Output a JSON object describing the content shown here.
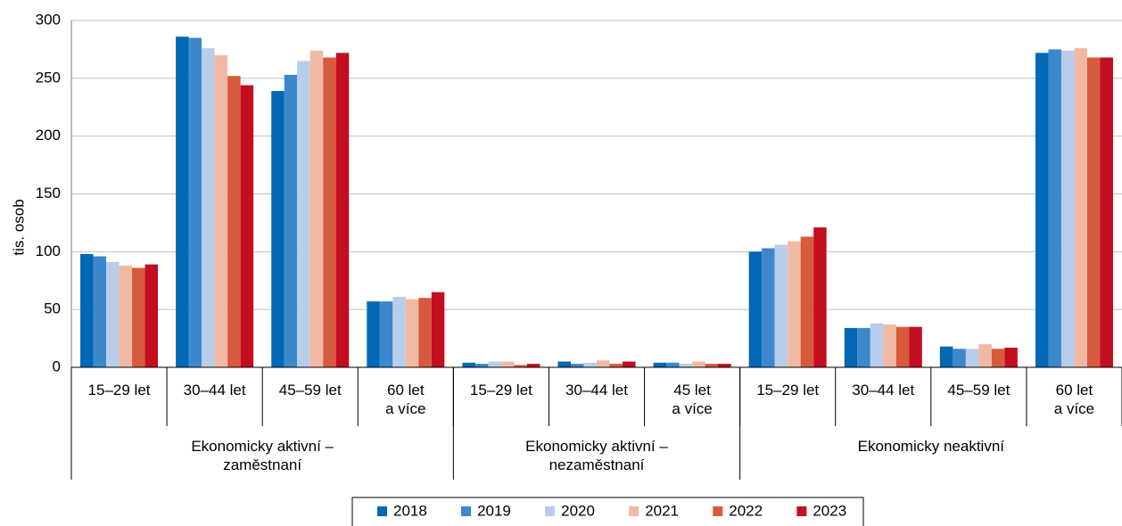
{
  "chart_data": {
    "type": "bar",
    "y_label": "tis. osob",
    "groups": [
      {
        "name": "Ekonomicky aktivní –\nzaměstnaní",
        "categories": [
          "15–29 let",
          "30–44 let",
          "45–59 let",
          "60 let\na více"
        ]
      },
      {
        "name": "Ekonomicky aktivní –\nnezaměstnaní",
        "categories": [
          "15–29 let",
          "30–44 let",
          "45 let\na více"
        ]
      },
      {
        "name": "Ekonomicky neaktivní",
        "categories": [
          "15–29 let",
          "30–44 let",
          "45–59 let",
          "60 let\na více"
        ]
      }
    ],
    "series": [
      {
        "name": "2018",
        "color": "#0068b4",
        "values": [
          98,
          286,
          239,
          57,
          4,
          5,
          4,
          100,
          34,
          18,
          272
        ]
      },
      {
        "name": "2019",
        "color": "#3d87cd",
        "values": [
          96,
          285,
          253,
          57,
          3,
          3,
          4,
          103,
          34,
          16,
          275
        ]
      },
      {
        "name": "2020",
        "color": "#b8cdea",
        "values": [
          91,
          276,
          265,
          61,
          5,
          4,
          3,
          106,
          38,
          16,
          274
        ]
      },
      {
        "name": "2021",
        "color": "#f1b9a4",
        "values": [
          88,
          270,
          274,
          59,
          5,
          6,
          5,
          109,
          37,
          20,
          276
        ]
      },
      {
        "name": "2022",
        "color": "#d65a3b",
        "values": [
          86,
          252,
          268,
          60,
          2,
          3,
          3,
          113,
          35,
          16,
          268
        ]
      },
      {
        "name": "2023",
        "color": "#c20e1f",
        "values": [
          89,
          244,
          272,
          65,
          3,
          5,
          3,
          121,
          35,
          17,
          268
        ]
      }
    ],
    "ylim": [
      0,
      300
    ],
    "yticks": [
      0,
      50,
      100,
      150,
      200,
      250,
      300
    ],
    "grid": true,
    "legend": "bottom"
  }
}
